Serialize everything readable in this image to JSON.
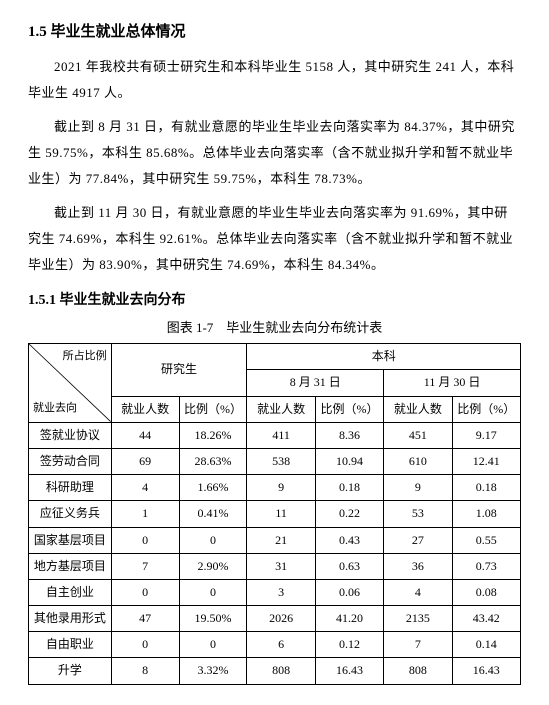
{
  "heading1": "1.5 毕业生就业总体情况",
  "para1": "2021 年我校共有硕士研究生和本科毕业生 5158 人，其中研究生 241 人，本科毕业生 4917 人。",
  "para2": "截止到 8 月 31 日，有就业意愿的毕业生毕业去向落实率为 84.37%，其中研究生 59.75%，本科生 85.68%。总体毕业去向落实率（含不就业拟升学和暂不就业毕业生）为 77.84%，其中研究生 59.75%，本科生 78.73%。",
  "para3": "截止到 11 月 30 日，有就业意愿的毕业生毕业去向落实率为 91.69%，其中研究生 74.69%，本科生 92.61%。总体毕业去向落实率（含不就业拟升学和暂不就业毕业生）为 83.90%，其中研究生 74.69%，本科生 84.34%。",
  "heading2": "1.5.1 毕业生就业去向分布",
  "table": {
    "caption": "图表 1-7　毕业生就业去向分布统计表",
    "diag_top": "所占比例",
    "diag_bottom": "就业去向",
    "group_grad": "研究生",
    "group_ug": "本科",
    "date1": "8 月 31 日",
    "date2": "11 月 30 日",
    "col_count": "就业人数",
    "col_pct": "比例（%）",
    "rows": [
      {
        "label": "签就业协议",
        "g_n": "44",
        "g_p": "18.26%",
        "u1_n": "411",
        "u1_p": "8.36",
        "u2_n": "451",
        "u2_p": "9.17"
      },
      {
        "label": "签劳动合同",
        "g_n": "69",
        "g_p": "28.63%",
        "u1_n": "538",
        "u1_p": "10.94",
        "u2_n": "610",
        "u2_p": "12.41"
      },
      {
        "label": "科研助理",
        "g_n": "4",
        "g_p": "1.66%",
        "u1_n": "9",
        "u1_p": "0.18",
        "u2_n": "9",
        "u2_p": "0.18"
      },
      {
        "label": "应征义务兵",
        "g_n": "1",
        "g_p": "0.41%",
        "u1_n": "11",
        "u1_p": "0.22",
        "u2_n": "53",
        "u2_p": "1.08"
      },
      {
        "label": "国家基层项目",
        "g_n": "0",
        "g_p": "0",
        "u1_n": "21",
        "u1_p": "0.43",
        "u2_n": "27",
        "u2_p": "0.55"
      },
      {
        "label": "地方基层项目",
        "g_n": "7",
        "g_p": "2.90%",
        "u1_n": "31",
        "u1_p": "0.63",
        "u2_n": "36",
        "u2_p": "0.73"
      },
      {
        "label": "自主创业",
        "g_n": "0",
        "g_p": "0",
        "u1_n": "3",
        "u1_p": "0.06",
        "u2_n": "4",
        "u2_p": "0.08"
      },
      {
        "label": "其他录用形式",
        "g_n": "47",
        "g_p": "19.50%",
        "u1_n": "2026",
        "u1_p": "41.20",
        "u2_n": "2135",
        "u2_p": "43.42"
      },
      {
        "label": "自由职业",
        "g_n": "0",
        "g_p": "0",
        "u1_n": "6",
        "u1_p": "0.12",
        "u2_n": "7",
        "u2_p": "0.14"
      },
      {
        "label": "升学",
        "g_n": "8",
        "g_p": "3.32%",
        "u1_n": "808",
        "u1_p": "16.43",
        "u2_n": "808",
        "u2_p": "16.43"
      }
    ]
  }
}
